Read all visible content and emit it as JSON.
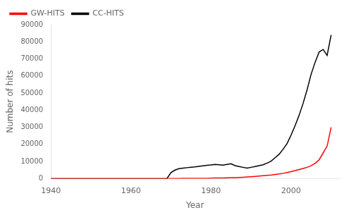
{
  "chart_data": {
    "type": "line",
    "xlabel": "Year",
    "ylabel": "Number of hits",
    "x": [
      1940,
      1945,
      1950,
      1955,
      1960,
      1965,
      1966,
      1967,
      1968,
      1969,
      1970,
      1971,
      1972,
      1973,
      1974,
      1975,
      1976,
      1977,
      1978,
      1979,
      1980,
      1981,
      1982,
      1983,
      1984,
      1985,
      1986,
      1987,
      1988,
      1989,
      1990,
      1991,
      1992,
      1993,
      1994,
      1995,
      1996,
      1997,
      1998,
      1999,
      2000,
      2001,
      2002,
      2003,
      2004,
      2005,
      2006,
      2007,
      2008,
      2009,
      2010
    ],
    "series": [
      {
        "name": "GW-HITS",
        "color": "#ff0000",
        "values": [
          0,
          0,
          0,
          0,
          0,
          0,
          0,
          0,
          0,
          0,
          50,
          80,
          100,
          120,
          130,
          140,
          150,
          160,
          180,
          200,
          280,
          320,
          380,
          420,
          480,
          560,
          620,
          700,
          820,
          950,
          1100,
          1300,
          1500,
          1700,
          1900,
          2100,
          2400,
          2700,
          3100,
          3600,
          4100,
          4700,
          5300,
          5900,
          6600,
          7500,
          9000,
          11000,
          15000,
          19000,
          30000
        ]
      },
      {
        "name": "CC-HITS",
        "color": "#000000",
        "values": [
          0,
          0,
          0,
          0,
          0,
          0,
          0,
          0,
          0,
          100,
          3500,
          5000,
          5800,
          6100,
          6400,
          6700,
          6900,
          7200,
          7500,
          7800,
          8000,
          8300,
          8100,
          7900,
          8300,
          8700,
          7600,
          7100,
          6600,
          6100,
          6600,
          7100,
          7600,
          8100,
          9100,
          10200,
          12200,
          14200,
          17200,
          20500,
          25500,
          31000,
          37000,
          44000,
          52000,
          61000,
          68000,
          74000,
          75500,
          72000,
          84000
        ]
      }
    ],
    "xlim": [
      1940,
      2012
    ],
    "ylim": [
      0,
      90000
    ],
    "xticks": [
      1940,
      1960,
      1980,
      2000
    ],
    "yticks": [
      0,
      10000,
      20000,
      30000,
      40000,
      50000,
      60000,
      70000,
      80000,
      90000
    ],
    "grid": false,
    "legend": "upper left"
  }
}
